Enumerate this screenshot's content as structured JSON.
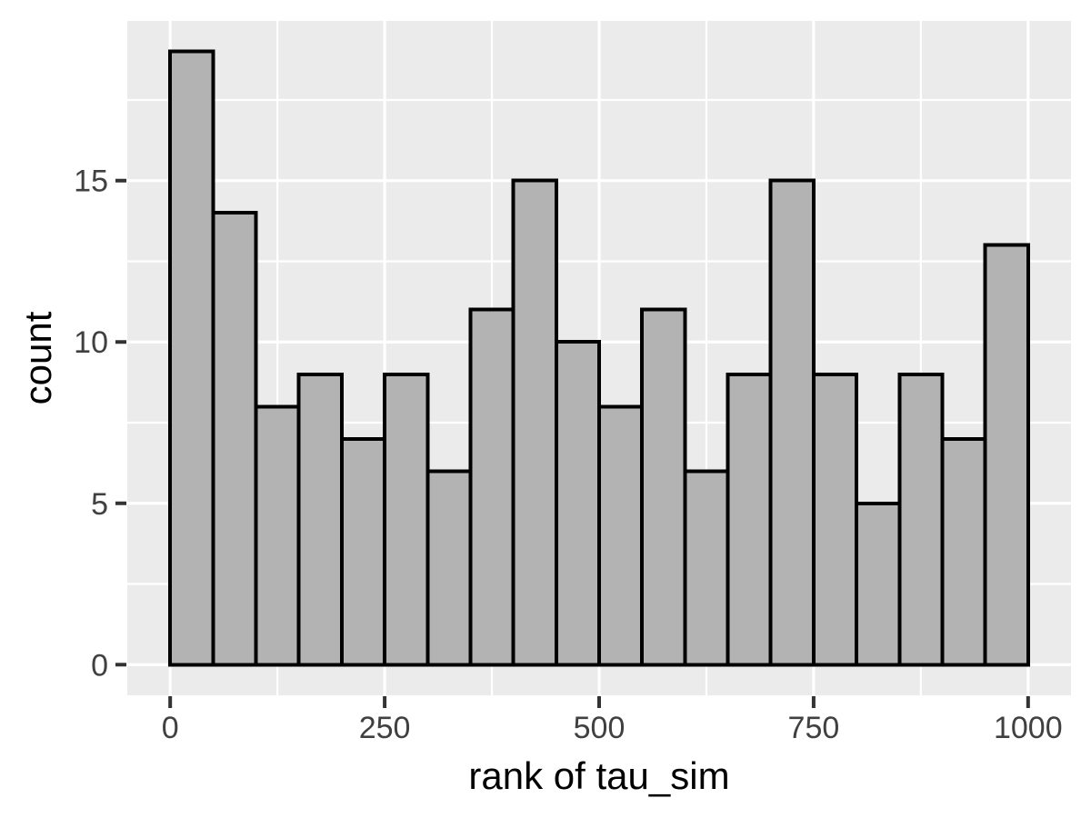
{
  "chart_data": {
    "type": "bar",
    "subtype": "histogram",
    "title": "",
    "xlabel": "rank of tau_sim",
    "ylabel": "count",
    "bin_start": 0,
    "bin_width": 50,
    "counts": [
      19,
      14,
      8,
      9,
      7,
      9,
      6,
      11,
      15,
      10,
      8,
      11,
      6,
      9,
      15,
      9,
      5,
      9,
      7,
      13
    ],
    "x_ticks": [
      0,
      250,
      500,
      750,
      1000
    ],
    "y_ticks": [
      0,
      5,
      10,
      15
    ],
    "x_minor_ticks": [
      125,
      375,
      625,
      875
    ],
    "y_minor_ticks": [
      2.5,
      7.5,
      12.5,
      17.5
    ],
    "xlim": [
      -50,
      1050
    ],
    "ylim": [
      -0.95,
      19.95
    ],
    "grid": true,
    "legend": "none",
    "colors": {
      "figure_background": "#FFFFFF",
      "panel_background": "#EBEBEB",
      "grid_major": "#FFFFFF",
      "grid_minor": "#FFFFFF",
      "bar_fill": "#B3B3B3",
      "bar_stroke": "#000000",
      "tick_mark": "#333333",
      "tick_label": "#404040",
      "axis_title": "#000000"
    }
  }
}
